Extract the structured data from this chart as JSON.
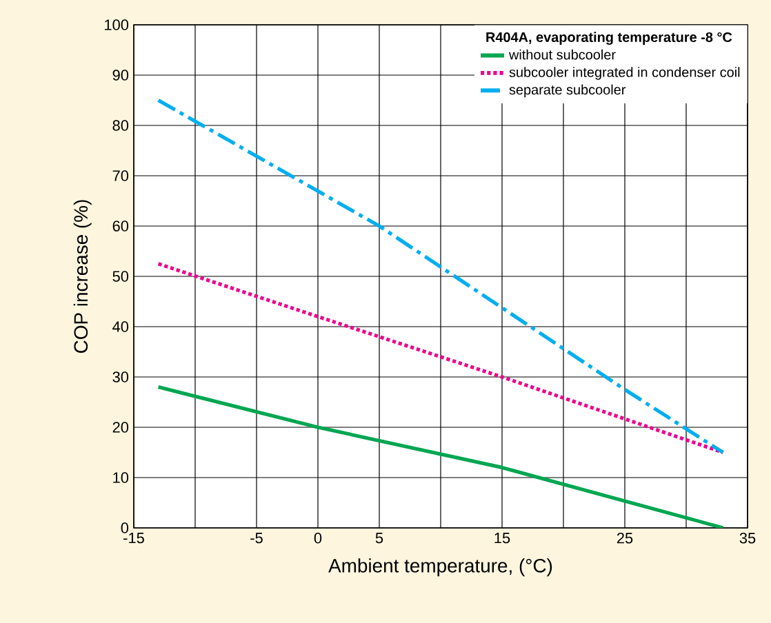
{
  "chart_data": {
    "type": "line",
    "legend_title": "R404A,  evaporating temperature  -8 °C",
    "xlabel": "Ambient temperature, (°C)",
    "ylabel": "COP increase (%)",
    "xlim": [
      -15,
      35
    ],
    "ylim": [
      0,
      100
    ],
    "xticks": [
      -15,
      {
        "value": -10,
        "label": null
      },
      -5,
      0,
      5,
      {
        "value": 10,
        "label": null
      },
      15,
      {
        "value": 20,
        "label": null
      },
      25,
      {
        "value": 30,
        "label": null
      },
      35
    ],
    "yticks": [
      0,
      10,
      20,
      30,
      40,
      50,
      60,
      70,
      80,
      90,
      100
    ],
    "grid": true,
    "legend": "top right",
    "marker": "none",
    "series": [
      {
        "name": "without subcooler",
        "color": "#00a651",
        "line_style": "solid",
        "x": [
          -13,
          0,
          15,
          33
        ],
        "values": [
          28,
          20,
          12,
          0
        ]
      },
      {
        "name": "subcooler integrated in condenser coil",
        "color": "#ec008c",
        "line_style": "dotted",
        "x": [
          -13,
          0,
          15,
          33
        ],
        "values": [
          52.5,
          42,
          30,
          15
        ]
      },
      {
        "name": "separate subcooler",
        "color": "#00aeef",
        "line_style": "dashdot",
        "x": [
          -13,
          5,
          25,
          33
        ],
        "values": [
          85,
          60,
          27.5,
          15
        ]
      }
    ]
  }
}
